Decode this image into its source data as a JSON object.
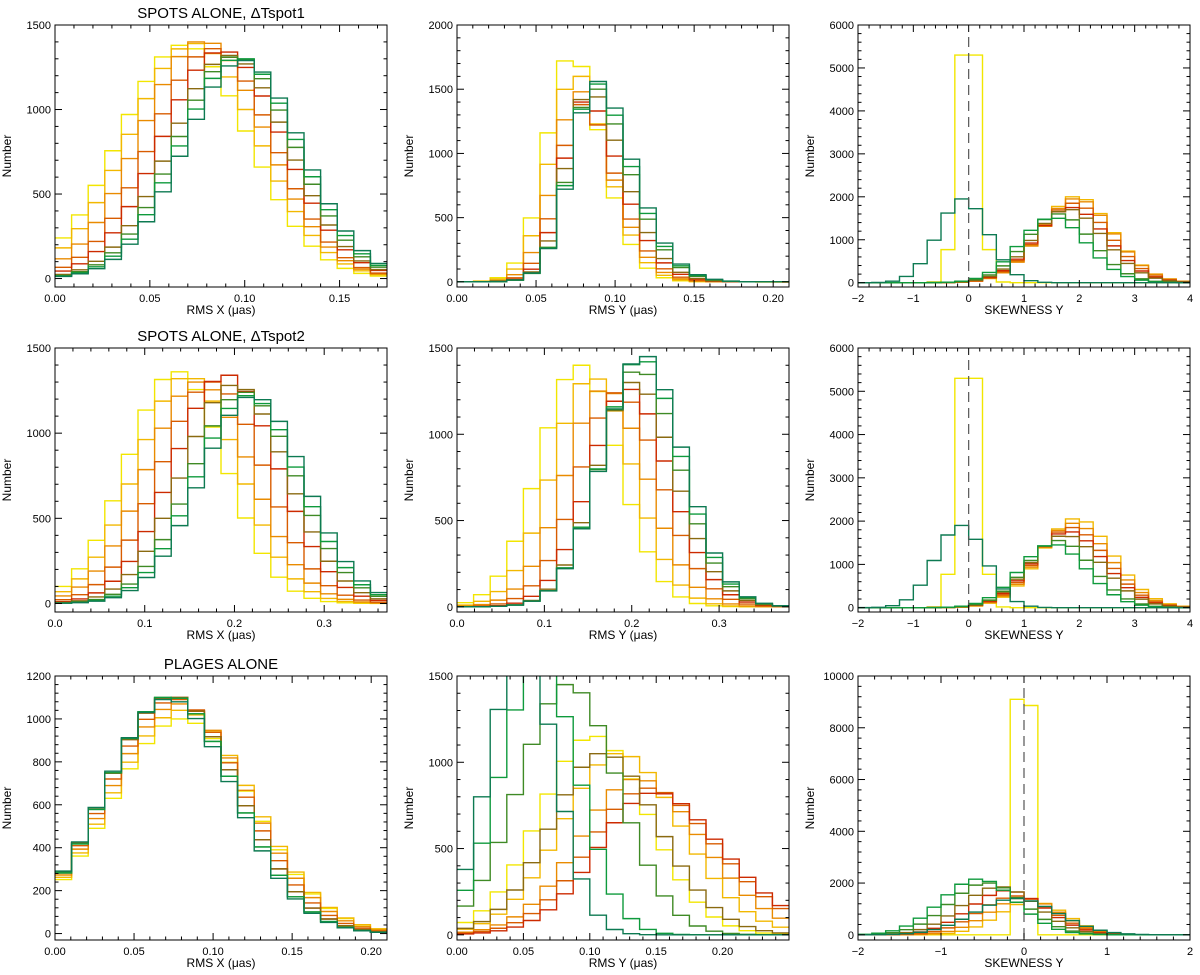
{
  "colors": [
    "#f2e600",
    "#f2b800",
    "#e98b00",
    "#d85c00",
    "#cc2a00",
    "#8a6a10",
    "#3f8a25",
    "#0e9a3c",
    "#0d7a52"
  ],
  "chart_data": [
    {
      "id": "p11",
      "type": "histogram",
      "title": "SPOTS ALONE, ΔTspot1",
      "xlabel": "RMS X (μas)",
      "ylabel": "Number",
      "xlim": [
        0.0,
        0.175
      ],
      "ylim": [
        -50,
        1500
      ],
      "xticks": [
        0.0,
        0.05,
        0.1,
        0.15
      ],
      "xtick_labels": [
        "0.00",
        "0.05",
        "0.10",
        "0.15"
      ],
      "yticks": [
        0,
        500,
        1000,
        1500
      ],
      "ytick_labels": [
        "0",
        "500",
        "1000",
        "1500"
      ],
      "bin_width": 0.00875,
      "hist_params": [
        [
          0.068,
          0.034,
          1380,
          0.0
        ],
        [
          0.073,
          0.034,
          1390,
          0.0
        ],
        [
          0.078,
          0.033,
          1400,
          0.0
        ],
        [
          0.083,
          0.032,
          1360,
          0.0
        ],
        [
          0.088,
          0.032,
          1340,
          0.0
        ],
        [
          0.092,
          0.031,
          1320,
          0.0
        ],
        [
          0.095,
          0.031,
          1310,
          0.0
        ],
        [
          0.097,
          0.031,
          1300,
          0.0
        ],
        [
          0.099,
          0.031,
          1290,
          0.0
        ]
      ]
    },
    {
      "id": "p12",
      "type": "histogram",
      "xlabel": "RMS Y (μas)",
      "ylabel": "Number",
      "xlim": [
        0.0,
        0.21
      ],
      "ylim": [
        -40,
        2000
      ],
      "xticks": [
        0.0,
        0.05,
        0.1,
        0.15,
        0.2
      ],
      "xtick_labels": [
        "0.00",
        "0.05",
        "0.10",
        "0.15",
        "0.20"
      ],
      "yticks": [
        0,
        500,
        1000,
        1500,
        2000
      ],
      "ytick_labels": [
        "0",
        "500",
        "1000",
        "1500",
        "2000"
      ],
      "bin_width": 0.0105,
      "hist_params": [
        [
          0.06,
          0.024,
          1720,
          1.5
        ],
        [
          0.062,
          0.025,
          1600,
          1.6
        ],
        [
          0.064,
          0.026,
          1480,
          1.8
        ],
        [
          0.066,
          0.027,
          1380,
          2.0
        ],
        [
          0.068,
          0.028,
          1400,
          2.2
        ],
        [
          0.07,
          0.028,
          1440,
          2.2
        ],
        [
          0.072,
          0.029,
          1500,
          2.2
        ],
        [
          0.073,
          0.029,
          1540,
          2.1
        ],
        [
          0.074,
          0.029,
          1560,
          2.0
        ]
      ]
    },
    {
      "id": "p13",
      "type": "histogram",
      "xlabel": "SKEWNESS Y",
      "ylabel": "Number",
      "xlim": [
        -2,
        4
      ],
      "ylim": [
        -100,
        6000
      ],
      "xticks": [
        -2,
        -1,
        0,
        1,
        2,
        3,
        4
      ],
      "xtick_labels": [
        "−2",
        "−1",
        "0",
        "1",
        "2",
        "3",
        "4"
      ],
      "yticks": [
        0,
        1000,
        2000,
        3000,
        4000,
        5000,
        6000
      ],
      "ytick_labels": [
        "0",
        "1000",
        "2000",
        "3000",
        "4000",
        "5000",
        "6000"
      ],
      "bin_width": 0.25,
      "dashed_x": 0,
      "hist_params": [
        [
          0.0,
          0.18,
          5300,
          0.0
        ],
        [
          1.6,
          0.75,
          2000,
          0.8
        ],
        [
          1.6,
          0.75,
          1950,
          0.8
        ],
        [
          1.55,
          0.75,
          1850,
          0.8
        ],
        [
          1.5,
          0.75,
          1750,
          0.8
        ],
        [
          1.45,
          0.75,
          1700,
          0.8
        ],
        [
          1.3,
          0.7,
          1600,
          0.8
        ],
        [
          1.2,
          0.7,
          1500,
          0.8
        ],
        [
          -0.1,
          0.45,
          1950,
          0.0
        ]
      ]
    },
    {
      "id": "p21",
      "type": "histogram",
      "title": "SPOTS ALONE, ΔTspot2",
      "xlabel": "RMS X (μas)",
      "ylabel": "Number",
      "xlim": [
        0.0,
        0.37
      ],
      "ylim": [
        -50,
        1500
      ],
      "xticks": [
        0.0,
        0.1,
        0.2,
        0.3
      ],
      "xtick_labels": [
        "0.0",
        "0.1",
        "0.2",
        "0.3"
      ],
      "yticks": [
        0,
        500,
        1000,
        1500
      ],
      "ytick_labels": [
        "0",
        "500",
        "1000",
        "1500"
      ],
      "bin_width": 0.0185,
      "hist_params": [
        [
          0.135,
          0.055,
          1360,
          0.0
        ],
        [
          0.148,
          0.057,
          1320,
          0.0
        ],
        [
          0.16,
          0.058,
          1300,
          0.0
        ],
        [
          0.175,
          0.058,
          1300,
          0.0
        ],
        [
          0.19,
          0.058,
          1340,
          0.0
        ],
        [
          0.2,
          0.058,
          1280,
          0.0
        ],
        [
          0.21,
          0.058,
          1240,
          0.0
        ],
        [
          0.215,
          0.058,
          1220,
          0.0
        ],
        [
          0.22,
          0.058,
          1210,
          0.0
        ]
      ]
    },
    {
      "id": "p22",
      "type": "histogram",
      "xlabel": "RMS Y (μas)",
      "ylabel": "Number",
      "xlim": [
        0.0,
        0.38
      ],
      "ylim": [
        -30,
        1500
      ],
      "xticks": [
        0.0,
        0.1,
        0.2,
        0.3
      ],
      "xtick_labels": [
        "0.0",
        "0.1",
        "0.2",
        "0.3"
      ],
      "yticks": [
        0,
        500,
        1000,
        1500
      ],
      "ytick_labels": [
        "0",
        "500",
        "1000",
        "1500"
      ],
      "bin_width": 0.019,
      "hist_params": [
        [
          0.12,
          0.05,
          1400,
          0.6
        ],
        [
          0.132,
          0.052,
          1320,
          0.7
        ],
        [
          0.145,
          0.054,
          1250,
          0.8
        ],
        [
          0.158,
          0.056,
          1240,
          0.9
        ],
        [
          0.168,
          0.056,
          1260,
          1.0
        ],
        [
          0.176,
          0.055,
          1300,
          1.0
        ],
        [
          0.182,
          0.054,
          1360,
          0.9
        ],
        [
          0.186,
          0.053,
          1420,
          0.8
        ],
        [
          0.19,
          0.052,
          1450,
          0.7
        ]
      ]
    },
    {
      "id": "p23",
      "type": "histogram",
      "xlabel": "SKEWNESS Y",
      "ylabel": "Number",
      "xlim": [
        -2,
        4
      ],
      "ylim": [
        -100,
        6000
      ],
      "xticks": [
        -2,
        -1,
        0,
        1,
        2,
        3,
        4
      ],
      "xtick_labels": [
        "−2",
        "−1",
        "0",
        "1",
        "2",
        "3",
        "4"
      ],
      "yticks": [
        0,
        1000,
        2000,
        3000,
        4000,
        5000,
        6000
      ],
      "ytick_labels": [
        "0",
        "1000",
        "2000",
        "3000",
        "4000",
        "5000",
        "6000"
      ],
      "bin_width": 0.25,
      "dashed_x": 0,
      "hist_params": [
        [
          0.0,
          0.18,
          5300,
          0.0
        ],
        [
          1.6,
          0.75,
          2050,
          0.8
        ],
        [
          1.55,
          0.75,
          1950,
          0.8
        ],
        [
          1.5,
          0.75,
          1850,
          0.8
        ],
        [
          1.45,
          0.75,
          1750,
          0.8
        ],
        [
          1.4,
          0.75,
          1650,
          0.8
        ],
        [
          1.3,
          0.7,
          1550,
          0.8
        ],
        [
          1.2,
          0.7,
          1450,
          0.8
        ],
        [
          -0.15,
          0.45,
          1900,
          0.0
        ]
      ]
    },
    {
      "id": "p31",
      "type": "histogram",
      "title": "PLAGES ALONE",
      "xlabel": "RMS X (μas)",
      "ylabel": "Number",
      "xlim": [
        0.0,
        0.21
      ],
      "ylim": [
        -30,
        1200
      ],
      "xticks": [
        0.0,
        0.05,
        0.1,
        0.15,
        0.2
      ],
      "xtick_labels": [
        "0.00",
        "0.05",
        "0.10",
        "0.15",
        "0.20"
      ],
      "yticks": [
        0,
        200,
        400,
        600,
        800,
        1000,
        1200
      ],
      "ytick_labels": [
        "0",
        "200",
        "400",
        "600",
        "800",
        "1000",
        "1200"
      ],
      "bin_width": 0.0105,
      "hist_params": [
        [
          0.08,
          0.045,
          1000,
          0.0
        ],
        [
          0.08,
          0.045,
          1040,
          0.0
        ],
        [
          0.078,
          0.044,
          1070,
          0.0
        ],
        [
          0.076,
          0.043,
          1090,
          0.0
        ],
        [
          0.074,
          0.042,
          1100,
          0.0
        ],
        [
          0.074,
          0.042,
          1100,
          0.0
        ],
        [
          0.073,
          0.041,
          1100,
          0.0
        ],
        [
          0.073,
          0.041,
          1100,
          0.0
        ],
        [
          0.072,
          0.041,
          1090,
          0.0
        ]
      ]
    },
    {
      "id": "p32",
      "type": "histogram",
      "xlabel": "RMS Y (μas)",
      "ylabel": "Number",
      "xlim": [
        0.0,
        0.25
      ],
      "ylim": [
        -30,
        1500
      ],
      "xticks": [
        0.0,
        0.05,
        0.1,
        0.15,
        0.2
      ],
      "xtick_labels": [
        "0.00",
        "0.05",
        "0.10",
        "0.15",
        "0.20"
      ],
      "yticks": [
        0,
        500,
        1000,
        1500
      ],
      "ytick_labels": [
        "0",
        "500",
        "1000",
        "1500"
      ],
      "bin_width": 0.0125,
      "hist_params": [
        [
          0.085,
          0.045,
          1150,
          0.6
        ],
        [
          0.095,
          0.055,
          1050,
          1.0
        ],
        [
          0.105,
          0.06,
          900,
          1.2
        ],
        [
          0.11,
          0.065,
          850,
          1.4
        ],
        [
          0.115,
          0.065,
          820,
          1.5
        ],
        [
          0.085,
          0.05,
          1050,
          1.0
        ],
        [
          0.07,
          0.04,
          1450,
          0.5
        ],
        [
          0.055,
          0.03,
          1550,
          0.3
        ],
        [
          0.045,
          0.025,
          1650,
          0.2
        ]
      ]
    },
    {
      "id": "p33",
      "type": "histogram",
      "xlabel": "SKEWNESS Y",
      "ylabel": "Number",
      "xlim": [
        -2,
        2
      ],
      "ylim": [
        -200,
        10000
      ],
      "xticks": [
        -2,
        -1,
        0,
        1,
        2
      ],
      "xtick_labels": [
        "−2",
        "−1",
        "0",
        "1",
        "2"
      ],
      "yticks": [
        0,
        2000,
        4000,
        6000,
        8000,
        10000
      ],
      "ytick_labels": [
        "0",
        "2000",
        "4000",
        "6000",
        "8000",
        "10000"
      ],
      "bin_width": 0.1667,
      "dashed_x": 0,
      "hist_params": [
        [
          0.0,
          0.05,
          9100,
          0.0
        ],
        [
          0.1,
          0.4,
          1300,
          0.0
        ],
        [
          0.0,
          0.42,
          1400,
          0.0
        ],
        [
          -0.1,
          0.44,
          1500,
          0.0
        ],
        [
          -0.2,
          0.45,
          1700,
          0.0
        ],
        [
          -0.3,
          0.45,
          1850,
          0.0
        ],
        [
          -0.45,
          0.45,
          2000,
          0.0
        ],
        [
          -0.55,
          0.45,
          2150,
          0.0
        ],
        [
          -0.1,
          0.5,
          1400,
          0.0
        ]
      ]
    }
  ]
}
